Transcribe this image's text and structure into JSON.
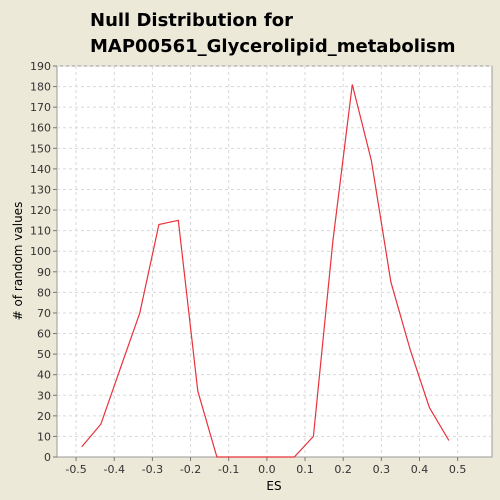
{
  "chart_data": {
    "type": "line",
    "title_lines": [
      "Null Distribution for",
      "MAP00561_Glycerolipid_metabolism"
    ],
    "xlabel": "ES",
    "ylabel": "# of random values",
    "xlim": [
      -0.55,
      0.59
    ],
    "ylim": [
      0,
      190
    ],
    "xticks": [
      -0.5,
      -0.4,
      -0.3,
      -0.2,
      -0.1,
      0.0,
      0.1,
      0.2,
      0.3,
      0.4,
      0.5
    ],
    "xtick_labels": [
      "-0.5",
      "-0.4",
      "-0.3",
      "-0.2",
      "-0.1",
      "0.0",
      "0.1",
      "0.2",
      "0.3",
      "0.4",
      "0.5"
    ],
    "yticks": [
      0,
      10,
      20,
      30,
      40,
      50,
      60,
      70,
      80,
      90,
      100,
      110,
      120,
      130,
      140,
      150,
      160,
      170,
      180,
      190
    ],
    "grid": true,
    "series": [
      {
        "color": "#e8323c",
        "x": [
          -0.485,
          -0.435,
          -0.384,
          -0.333,
          -0.283,
          -0.232,
          -0.181,
          -0.131,
          -0.08,
          -0.03,
          0.021,
          0.072,
          0.122,
          0.173,
          0.224,
          0.274,
          0.325,
          0.376,
          0.426,
          0.477,
          0.528
        ],
        "y": [
          5,
          16,
          43,
          70,
          113,
          115,
          32,
          0,
          0,
          0,
          0,
          0,
          10,
          105,
          181,
          144,
          85,
          52,
          24,
          8,
          null
        ]
      }
    ]
  }
}
